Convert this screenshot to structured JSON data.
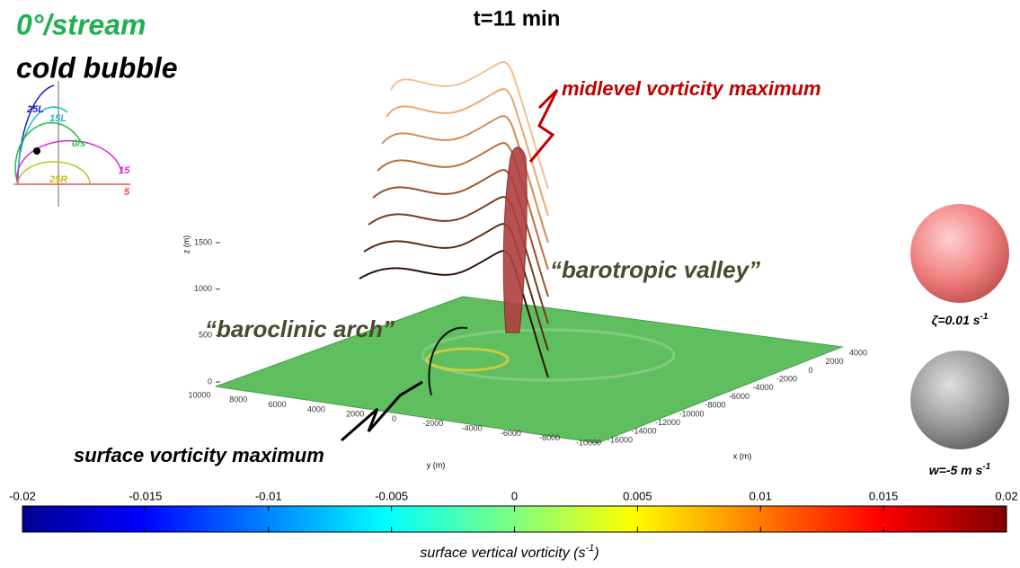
{
  "title": "t=11 min",
  "case_label": "0°/stream",
  "case_sublabel": "cold bubble",
  "hodograph_labels": [
    "25L",
    "15L",
    "0/s",
    "15",
    "25R",
    "5"
  ],
  "annotations": {
    "midlevel": "midlevel vorticity maximum",
    "barotropic": "“barotropic valley”",
    "baroclinic": "“baroclinic arch”",
    "surface": "surface vorticity maximum"
  },
  "z_axis": {
    "label": "z (m)",
    "ticks": [
      0,
      500,
      1000,
      1500
    ]
  },
  "y_axis": {
    "label": "y (m)",
    "ticks": [
      10000,
      8000,
      6000,
      4000,
      2000,
      0,
      -2000,
      -4000,
      -6000,
      -8000,
      -10000
    ]
  },
  "x_axis": {
    "label": "x (m)",
    "ticks": [
      -16000,
      -14000,
      -12000,
      -10000,
      -8000,
      -6000,
      -4000,
      -2000,
      0,
      2000,
      4000
    ]
  },
  "legend": {
    "vorticity": {
      "text": "ζ=0.01 s",
      "sup": "-1"
    },
    "updraft": {
      "text": "w=-5 m s",
      "sup": "-1"
    }
  },
  "colorbar": {
    "range": [
      -0.02,
      0.02
    ],
    "ticks": [
      -0.02,
      -0.015,
      -0.01,
      -0.005,
      0,
      0.005,
      0.01,
      0.015,
      0.02
    ],
    "label": {
      "text": "surface vertical vorticity (s",
      "sup": "-1",
      "end": ")"
    }
  }
}
